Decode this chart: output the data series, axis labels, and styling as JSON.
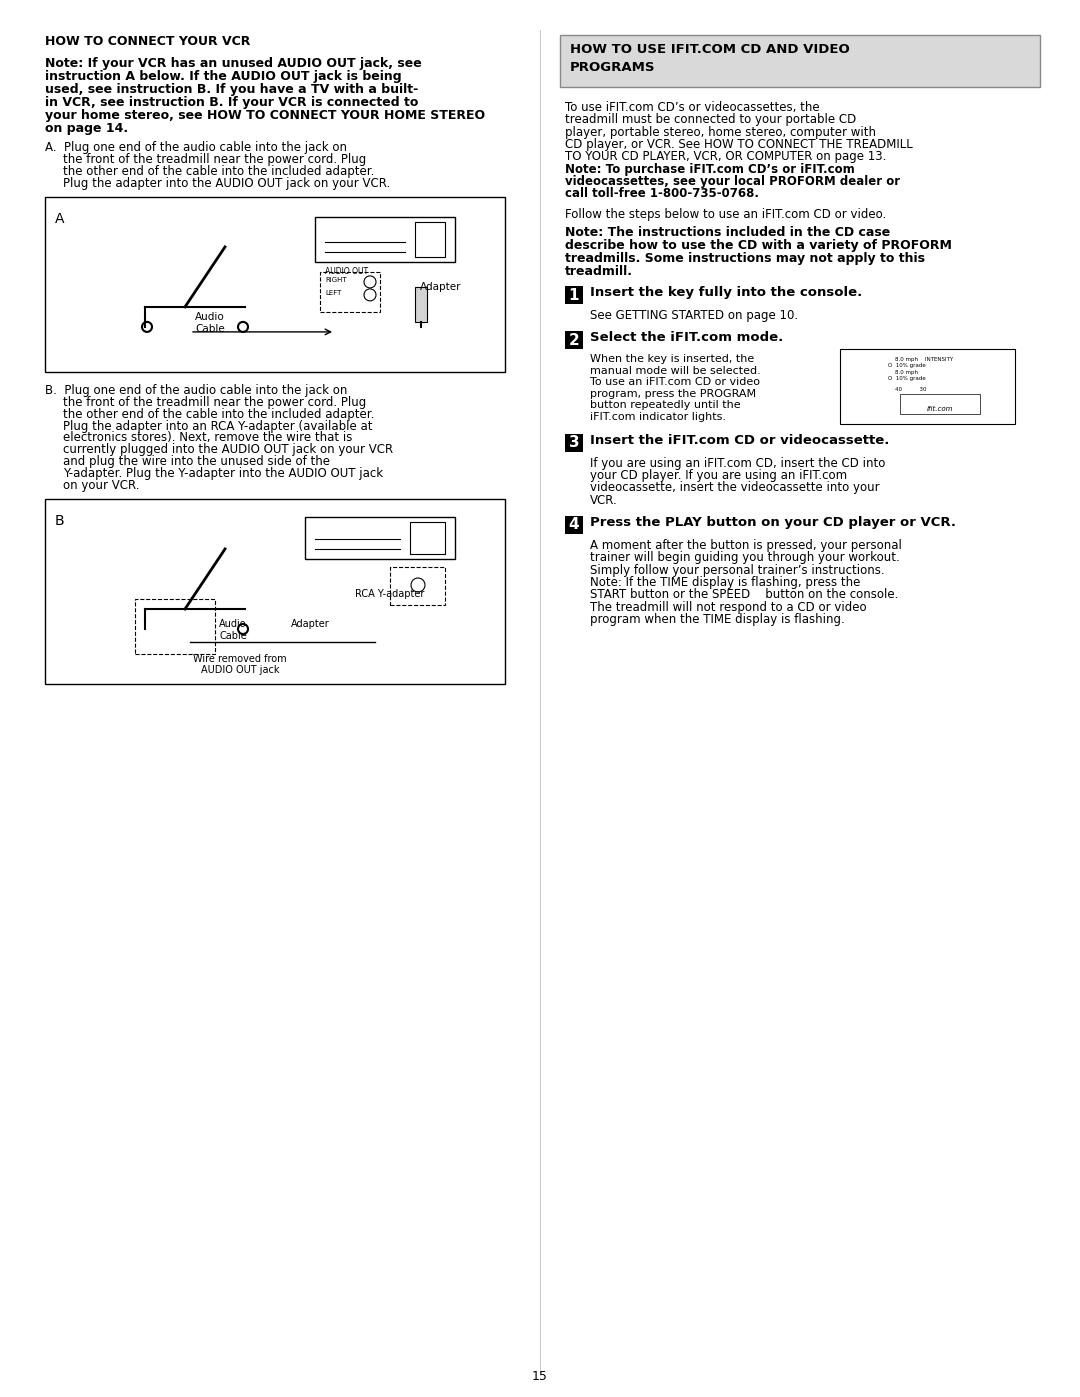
{
  "page_number": "15",
  "background_color": "#ffffff",
  "left_col": {
    "title": "HOW TO CONNECT YOUR VCR",
    "bold_note": "Note: If your VCR has an unused AUDIO OUT jack, see instruction A below. If the AUDIO OUT jack is being used, see instruction B. If you have a TV with a built-in VCR, see instruction B. If your VCR is connected to your home stereo, see HOW TO CONNECT YOUR HOME STEREO on page 14.",
    "para_A": "A.  Plug one end of the audio cable into the jack on the front of the treadmill near the power cord. Plug the other end of the cable into the included adapter. Plug the adapter into the AUDIO OUT jack on your VCR.",
    "para_B_pre": "B.  Plug one end of the audio cable into the jack on the front of the treadmill near the power cord. Plug the other end of the cable into the included adapter. Plug the adapter into an RCA Y-adapter (available at electronics stores). Next, remove the wire that is currently plugged into the AUDIO OUT jack on your VCR and plug the wire into the unused side of the Y-adapter. Plug the Y-adapter into the AUDIO OUT jack on your VCR."
  },
  "right_col": {
    "header_bg": "#d9d9d9",
    "header_text": "HOW TO USE IFIT.COM CD AND VIDEO\nPROGRAMS",
    "intro": "To use iFIT.com CD’s or videocassettes, the treadmill must be connected to your portable CD player, portable stereo, home stereo, computer with CD player, or VCR. See HOW TO CONNECT THE TREADMILL TO YOUR CD PLAYER, VCR, OR COMPUTER on page 13. Note: To purchase iFIT.com CD’s or iFIT.com videocassettes, see your local PROFORM dealer or call toll-free 1-800-735-0768.",
    "intro_bold_start": "Note: To purchase iFIT.com CD’s or iFIT.com videocassettes, see your local PROFORM dealer or call toll-free 1-800-735-0768.",
    "follow": "Follow the steps below to use an iFIT.com CD or video.",
    "note_bold": "Note: The instructions included in the CD case describe how to use the CD with a variety of PROFORM treadmills. Some instructions may not apply to this treadmill.",
    "step1_title": "Insert the key fully into the console.",
    "step1_body": "See GETTING STARTED on page 10.",
    "step2_title": "Select the iFIT.com mode.",
    "step2_body": "When the key is inserted, the manual mode will be selected. To use an iFIT.com CD or video program, press the PROGRAM button repeatedly until the iFIT.com indicator lights.",
    "step3_title": "Insert the iFIT.com CD or videocassette.",
    "step3_body": "If you are using an iFIT.com CD, insert the CD into your CD player. If you are using an iFIT.com videocassette, insert the videocassette into your VCR.",
    "step4_title": "Press the PLAY button on your CD player or VCR.",
    "step4_body": "A moment after the button is pressed, your personal trainer will begin guiding you through your workout. Simply follow your personal trainer’s instructions. Note: If the TIME display is flashing, press the START button or the SPEED    button on the console. The treadmill will not respond to a CD or video program when the TIME display is flashing."
  }
}
